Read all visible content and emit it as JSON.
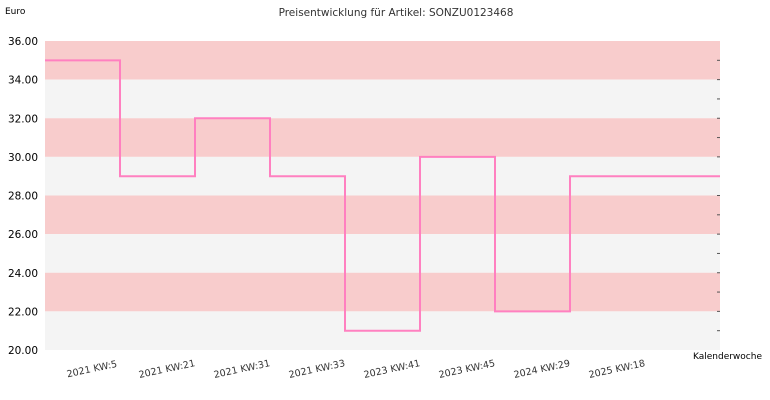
{
  "chart_data": {
    "type": "line",
    "title": "Preisentwicklung für Artikel: SONZU0123468",
    "ylabel": "Euro",
    "xlabel": "Kalenderwoche",
    "ylim": [
      20,
      36
    ],
    "yticks": [
      "20.00",
      "22.00",
      "24.00",
      "26.00",
      "28.00",
      "30.00",
      "32.00",
      "34.00",
      "36.00"
    ],
    "categories": [
      "2021 KW:5",
      "2021 KW:21",
      "2021 KW:31",
      "2021 KW:33",
      "2023 KW:41",
      "2023 KW:45",
      "2024 KW:29",
      "2025 KW:18"
    ],
    "series": [
      {
        "values": [
          35,
          29,
          32,
          29,
          21,
          30,
          22,
          29
        ]
      }
    ],
    "step": true,
    "grid": true,
    "colors": {
      "line": "#ff80c0",
      "band_dark": "#f8cccc",
      "band_light": "#f4f4f4"
    }
  }
}
